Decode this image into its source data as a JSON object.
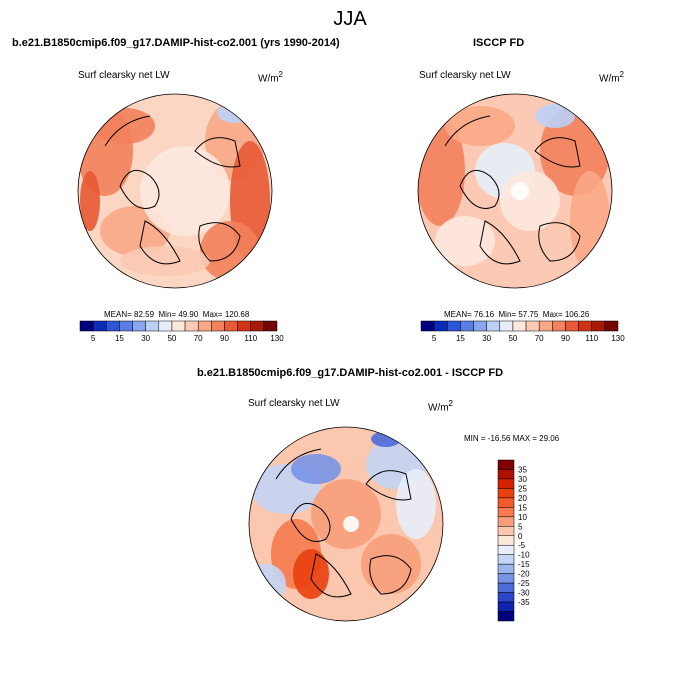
{
  "figure": {
    "season": "JJA"
  },
  "panels": [
    {
      "id": "model",
      "title": "b.e21.B1850cmip6.f09_g17.DAMIP-hist-co2.001 (yrs 1990-2014)",
      "variable": "Surf clearsky net LW",
      "units": "W/m",
      "units_sup": "2",
      "stats": {
        "mean": "82.59",
        "min": "49.90",
        "max": "120.68"
      },
      "stats_labels": {
        "mean": "MEAN=",
        "min": "Min=",
        "max": "Max="
      }
    },
    {
      "id": "obs",
      "title": "ISCCP FD",
      "variable": "Surf clearsky net LW",
      "units": "W/m",
      "units_sup": "2",
      "stats": {
        "mean": "76.16",
        "min": "57.75",
        "max": "106.26"
      },
      "stats_labels": {
        "mean": "MEAN=",
        "min": "Min=",
        "max": "Max="
      }
    },
    {
      "id": "diff",
      "title": "b.e21.B1850cmip6.f09_g17.DAMIP-hist-co2.001 - ISCCP FD",
      "variable": "Surf clearsky net LW",
      "units": "W/m",
      "units_sup": "2",
      "minmax_text": "MIN = -16.56 MAX =  29.06"
    }
  ],
  "chart_data": [
    {
      "type": "heatmap",
      "projection": "north-polar-stereographic",
      "panel": "model",
      "colorbar": {
        "orientation": "horizontal",
        "ticks": [
          5,
          15,
          30,
          50,
          70,
          90,
          110,
          130
        ],
        "colors": [
          "#00007f",
          "#0a2ab8",
          "#2f55d7",
          "#5a7ee6",
          "#8aa6ef",
          "#bcd0f6",
          "#e7eefa",
          "#fde8de",
          "#fccab4",
          "#f9a886",
          "#f3815c",
          "#e85a35",
          "#d13315",
          "#a81a08",
          "#740600"
        ]
      },
      "stats": {
        "mean": 82.59,
        "min": 49.9,
        "max": 120.68
      }
    },
    {
      "type": "heatmap",
      "projection": "north-polar-stereographic",
      "panel": "obs",
      "colorbar": {
        "orientation": "horizontal",
        "ticks": [
          5,
          15,
          30,
          50,
          70,
          90,
          110,
          130
        ],
        "colors": [
          "#00007f",
          "#0a2ab8",
          "#2f55d7",
          "#5a7ee6",
          "#8aa6ef",
          "#bcd0f6",
          "#e7eefa",
          "#fde8de",
          "#fccab4",
          "#f9a886",
          "#f3815c",
          "#e85a35",
          "#d13315",
          "#a81a08",
          "#740600"
        ]
      },
      "stats": {
        "mean": 76.16,
        "min": 57.75,
        "max": 106.26
      }
    },
    {
      "type": "heatmap",
      "projection": "north-polar-stereographic",
      "panel": "diff",
      "colorbar": {
        "orientation": "vertical",
        "ticks": [
          35,
          30,
          25,
          20,
          15,
          10,
          5,
          0,
          -5,
          -10,
          -15,
          -20,
          -25,
          -30,
          -35
        ],
        "colors": [
          "#7f0000",
          "#b00f00",
          "#d42200",
          "#ea3f0e",
          "#f25a2a",
          "#f57a4f",
          "#f89d7b",
          "#fbc8af",
          "#fde8dc",
          "#e8eefa",
          "#c3d4f5",
          "#9cb6ee",
          "#7793e6",
          "#4d6cdc",
          "#2b45c8",
          "#0f22b0",
          "#00007f"
        ]
      },
      "stats": {
        "min": -16.56,
        "max": 29.06
      }
    }
  ]
}
